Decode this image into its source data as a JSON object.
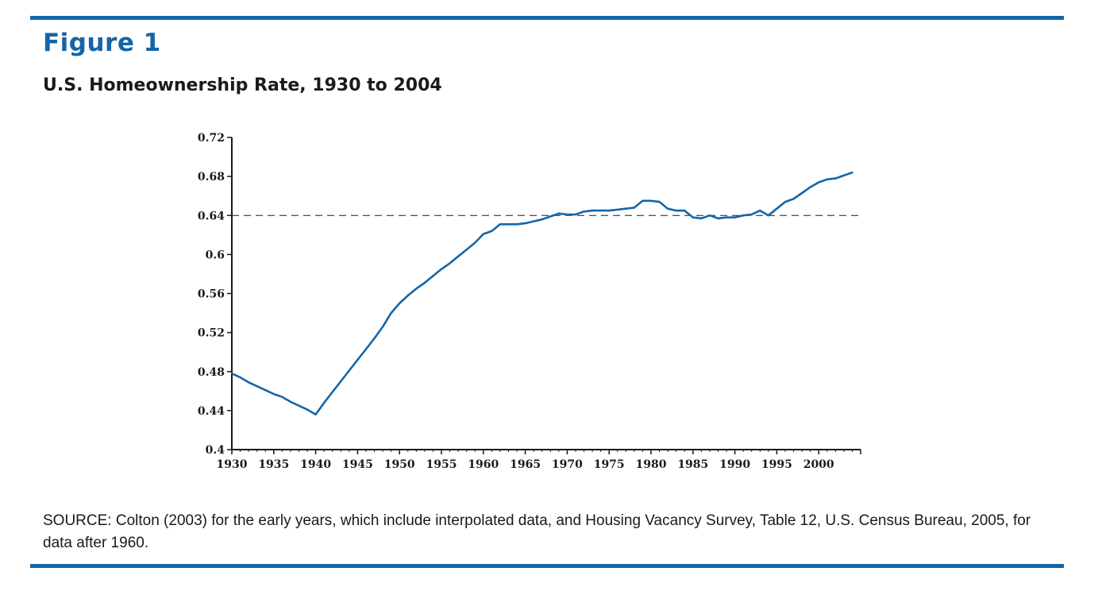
{
  "figure": {
    "label": "Figure 1",
    "title": "U.S. Homeownership Rate, 1930 to 2004",
    "source": "SOURCE: Colton (2003) for the early years, which include interpolated data, and Housing Vacancy Survey, Table 12, U.S. Census Bureau, 2005, for data after 1960."
  },
  "colors": {
    "accent": "#1565a8",
    "line": "#1565a8",
    "text": "#1a1a1a"
  },
  "chart_data": {
    "type": "line",
    "title": "U.S. Homeownership Rate, 1930 to 2004",
    "xlabel": "",
    "ylabel": "",
    "xlim": [
      1930,
      2005
    ],
    "ylim": [
      0.4,
      0.72
    ],
    "x_ticks": [
      1930,
      1935,
      1940,
      1945,
      1950,
      1955,
      1960,
      1965,
      1970,
      1975,
      1980,
      1985,
      1990,
      1995,
      2000
    ],
    "y_ticks": [
      0.4,
      0.44,
      0.48,
      0.52,
      0.56,
      0.6,
      0.64,
      0.68,
      0.72
    ],
    "y_tick_labels": [
      "0.4",
      "0.44",
      "0.48",
      "0.52",
      "0.56",
      "0.6",
      "0.64",
      "0.68",
      "0.72"
    ],
    "grid": false,
    "reference_line": {
      "y": 0.64,
      "style": "dashed"
    },
    "series": [
      {
        "x": [
          1930,
          1931,
          1932,
          1933,
          1934,
          1935,
          1936,
          1937,
          1938,
          1939,
          1940,
          1941,
          1942,
          1943,
          1944,
          1945,
          1946,
          1947,
          1948,
          1949,
          1950,
          1951,
          1952,
          1953,
          1954,
          1955,
          1956,
          1957,
          1958,
          1959,
          1960,
          1961,
          1962,
          1963,
          1964,
          1965,
          1966,
          1967,
          1968,
          1969,
          1970,
          1971,
          1972,
          1973,
          1974,
          1975,
          1976,
          1977,
          1978,
          1979,
          1980,
          1981,
          1982,
          1983,
          1984,
          1985,
          1986,
          1987,
          1988,
          1989,
          1990,
          1991,
          1992,
          1993,
          1994,
          1995,
          1996,
          1997,
          1998,
          1999,
          2000,
          2001,
          2002,
          2003,
          2004
        ],
        "values": [
          0.478,
          0.474,
          0.469,
          0.465,
          0.461,
          0.457,
          0.454,
          0.449,
          0.445,
          0.441,
          0.436,
          0.448,
          0.459,
          0.47,
          0.481,
          0.492,
          0.503,
          0.514,
          0.526,
          0.54,
          0.55,
          0.558,
          0.565,
          0.571,
          0.578,
          0.585,
          0.591,
          0.598,
          0.605,
          0.612,
          0.621,
          0.624,
          0.631,
          0.631,
          0.631,
          0.632,
          0.634,
          0.636,
          0.639,
          0.642,
          0.641,
          0.641,
          0.644,
          0.645,
          0.645,
          0.645,
          0.646,
          0.647,
          0.648,
          0.655,
          0.655,
          0.654,
          0.647,
          0.645,
          0.645,
          0.638,
          0.637,
          0.64,
          0.637,
          0.638,
          0.638,
          0.64,
          0.641,
          0.645,
          0.64,
          0.647,
          0.654,
          0.657,
          0.663,
          0.669,
          0.674,
          0.677,
          0.678,
          0.681,
          0.684
        ]
      }
    ]
  }
}
